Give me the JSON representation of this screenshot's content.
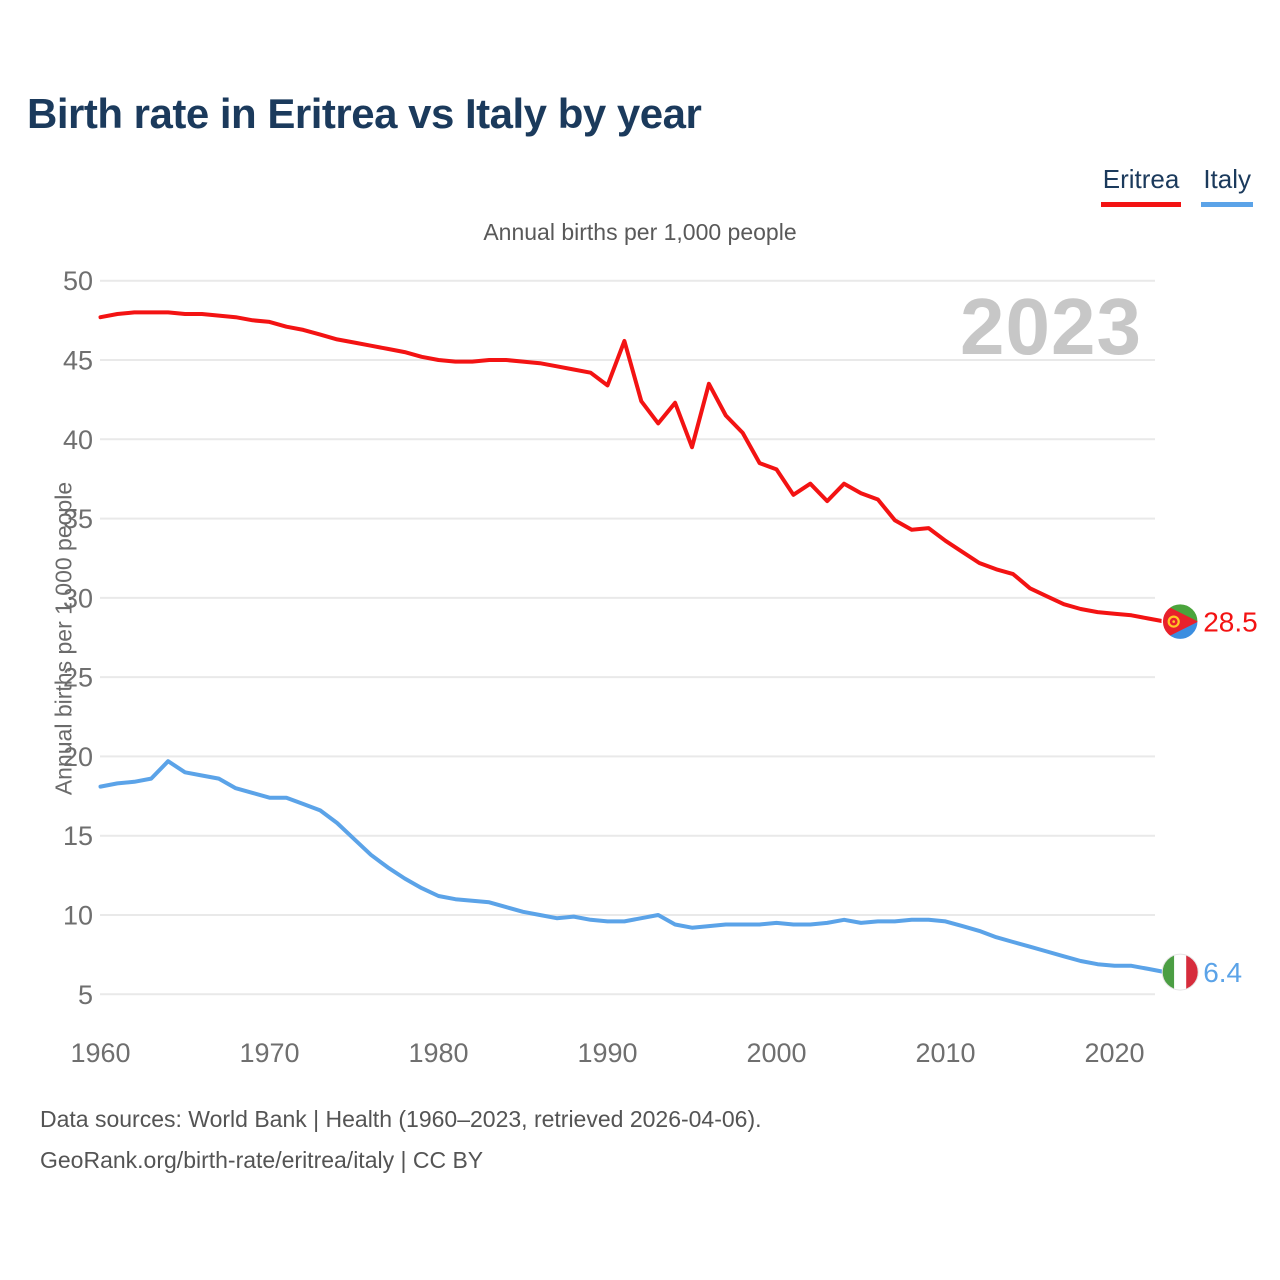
{
  "page": {
    "title": "Birth rate in Eritrea vs Italy by year",
    "subtitle": "Annual births per 1,000 people",
    "watermark": "2023"
  },
  "legend": {
    "items": [
      {
        "label": "Eritrea",
        "color": "#f31313"
      },
      {
        "label": "Italy",
        "color": "#5ba3e8"
      }
    ]
  },
  "axes": {
    "y_label": "Annual births per 1,000 people",
    "y_ticks": [
      50,
      45,
      40,
      35,
      30,
      25,
      20,
      15,
      10,
      5
    ],
    "x_ticks": [
      1960,
      1970,
      1980,
      1990,
      2000,
      2010,
      2020
    ]
  },
  "end_labels": [
    {
      "series": "Eritrea",
      "value": "28.5",
      "color": "#f31313",
      "flag": "eritrea-flag"
    },
    {
      "series": "Italy",
      "value": "6.4",
      "color": "#5ba3e8",
      "flag": "italy-flag"
    }
  ],
  "footer": {
    "line1": "Data sources: World Bank | Health (1960–2023, retrieved 2026-04-06).",
    "line2": "GeoRank.org/birth-rate/eritrea/italy | CC BY"
  },
  "chart_data": {
    "type": "line",
    "title": "Birth rate in Eritrea vs Italy by year",
    "subtitle": "Annual births per 1,000 people",
    "xlabel": "",
    "ylabel": "Annual births per 1,000 people",
    "ylim": [
      5,
      50
    ],
    "yticks": [
      50,
      45,
      40,
      35,
      30,
      25,
      20,
      15,
      10,
      5
    ],
    "xticks": [
      1960,
      1970,
      1980,
      1990,
      2000,
      2010,
      2020
    ],
    "grid": true,
    "legend_position": "top-right",
    "x": [
      1960,
      1961,
      1962,
      1963,
      1964,
      1965,
      1966,
      1967,
      1968,
      1969,
      1970,
      1971,
      1972,
      1973,
      1974,
      1975,
      1976,
      1977,
      1978,
      1979,
      1980,
      1981,
      1982,
      1983,
      1984,
      1985,
      1986,
      1987,
      1988,
      1989,
      1990,
      1991,
      1992,
      1993,
      1994,
      1995,
      1996,
      1997,
      1998,
      1999,
      2000,
      2001,
      2002,
      2003,
      2004,
      2005,
      2006,
      2007,
      2008,
      2009,
      2010,
      2011,
      2012,
      2013,
      2014,
      2015,
      2016,
      2017,
      2018,
      2019,
      2020,
      2021,
      2022,
      2023
    ],
    "series": [
      {
        "name": "Eritrea",
        "color": "#f31313",
        "values": [
          47.7,
          47.9,
          48.0,
          48.0,
          48.0,
          47.9,
          47.9,
          47.8,
          47.7,
          47.5,
          47.4,
          47.1,
          46.9,
          46.6,
          46.3,
          46.1,
          45.9,
          45.7,
          45.5,
          45.2,
          45.0,
          44.9,
          44.9,
          45.0,
          45.0,
          44.9,
          44.8,
          44.6,
          44.4,
          44.2,
          43.4,
          46.2,
          42.4,
          41.0,
          42.3,
          39.5,
          43.5,
          41.5,
          40.4,
          38.5,
          38.1,
          36.5,
          37.2,
          36.1,
          37.2,
          36.6,
          36.2,
          34.9,
          34.3,
          34.4,
          33.6,
          32.9,
          32.2,
          31.8,
          31.5,
          30.6,
          30.1,
          29.6,
          29.3,
          29.1,
          29.0,
          28.9,
          28.7,
          28.5
        ]
      },
      {
        "name": "Italy",
        "color": "#5ba3e8",
        "values": [
          18.1,
          18.3,
          18.4,
          18.6,
          19.7,
          19.0,
          18.8,
          18.6,
          18.0,
          17.7,
          17.4,
          17.4,
          17.0,
          16.6,
          15.8,
          14.8,
          13.8,
          13.0,
          12.3,
          11.7,
          11.2,
          11.0,
          10.9,
          10.8,
          10.5,
          10.2,
          10.0,
          9.8,
          9.9,
          9.7,
          9.6,
          9.6,
          9.8,
          10.0,
          9.4,
          9.2,
          9.3,
          9.4,
          9.4,
          9.4,
          9.5,
          9.4,
          9.4,
          9.5,
          9.7,
          9.5,
          9.6,
          9.6,
          9.7,
          9.7,
          9.6,
          9.3,
          9.0,
          8.6,
          8.3,
          8.0,
          7.7,
          7.4,
          7.1,
          6.9,
          6.8,
          6.8,
          6.6,
          6.4
        ]
      }
    ]
  }
}
